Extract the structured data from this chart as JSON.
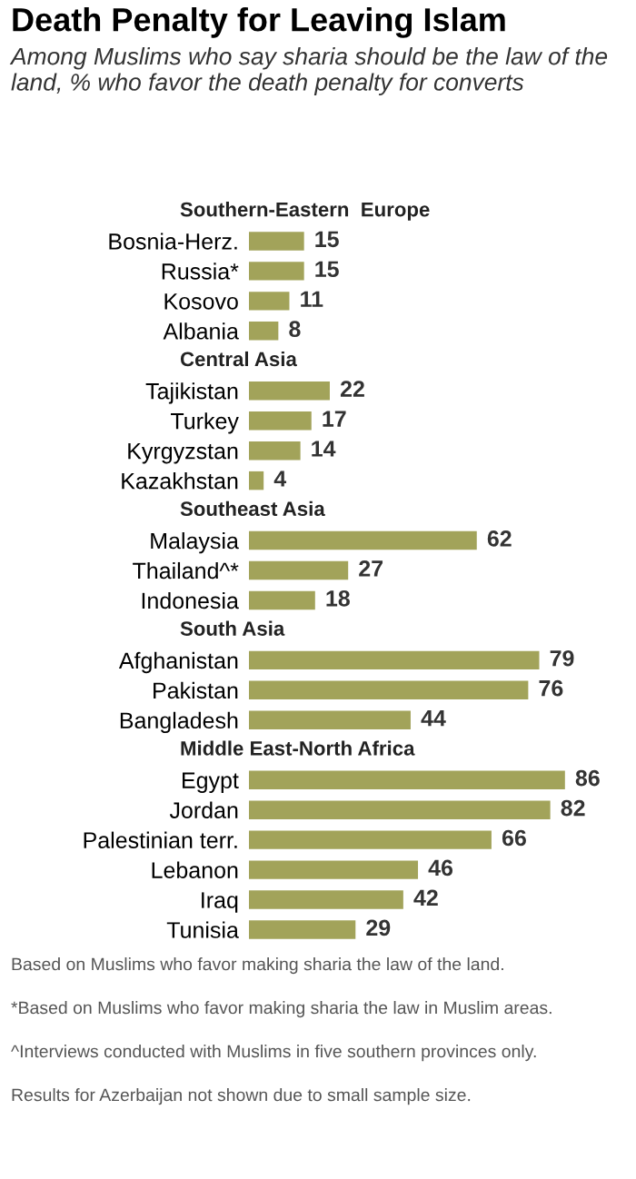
{
  "chart_data": {
    "type": "bar",
    "orientation": "horizontal",
    "title": "Death Penalty for Leaving Islam",
    "subtitle": "Among Muslims who say sharia should be the law of the land, % who favor the death penalty for converts",
    "categories": [
      "Southern-Eastern  Europe",
      "Bosnia-Herz.",
      "Russia*",
      "Kosovo",
      "Albania",
      "Central Asia",
      "Tajikistan",
      "Turkey",
      "Kyrgyzstan",
      "Kazakhstan",
      "Southeast Asia",
      "Malaysia",
      "Thailand^*",
      "Indonesia",
      "South Asia",
      "Afghanistan",
      "Pakistan",
      "Bangladesh",
      "Middle East-North Africa",
      "Egypt",
      "Jordan",
      "Palestinian terr.",
      "Lebanon",
      "Iraq",
      "Tunisia"
    ],
    "values": [
      null,
      15,
      15,
      11,
      8,
      null,
      22,
      17,
      14,
      4,
      null,
      62,
      27,
      18,
      null,
      79,
      76,
      44,
      null,
      86,
      82,
      66,
      46,
      42,
      29
    ],
    "color": "#a2a35a",
    "data_labels": true,
    "grid": false,
    "legend": false,
    "annotations": [
      "Based on Muslims who favor making sharia the law of the land.",
      "*Based on Muslims who favor making sharia the law in Muslim areas.",
      "^Interviews conducted with Muslims in five southern provinces only.",
      "Results for Azerbaijan not shown due to small sample size."
    ]
  }
}
